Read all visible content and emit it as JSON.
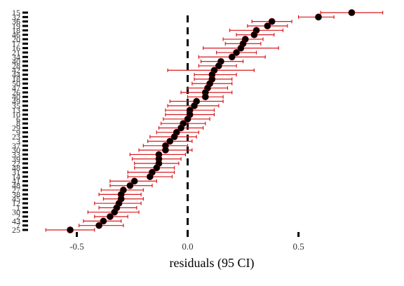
{
  "chart_data": {
    "type": "scatter",
    "xlabel": "residuals (95 CI)",
    "ylabel": "",
    "xlim": [
      -0.72,
      0.9
    ],
    "x_ticks": [
      -0.5,
      0.0,
      0.5
    ],
    "x_tick_labels": [
      "-0.5",
      "0.0",
      "0.5"
    ],
    "reference_line_x": 0,
    "grid": false,
    "colors": {
      "point": "#000000",
      "error_bar": "#d7191c",
      "reference_line": "#000000"
    },
    "series": [
      {
        "values": [
          {
            "label": "15",
            "x": 0.74,
            "lo": 0.6,
            "hi": 0.88
          },
          {
            "label": "32",
            "x": 0.59,
            "lo": 0.5,
            "hi": 0.66
          },
          {
            "label": "36",
            "x": 0.38,
            "lo": 0.29,
            "hi": 0.47
          },
          {
            "label": "19",
            "x": 0.36,
            "lo": 0.27,
            "hi": 0.45
          },
          {
            "label": "18",
            "x": 0.31,
            "lo": 0.19,
            "hi": 0.43
          },
          {
            "label": "46",
            "x": 0.3,
            "lo": 0.22,
            "hi": 0.39
          },
          {
            "label": "20",
            "x": 0.26,
            "lo": 0.16,
            "hi": 0.34
          },
          {
            "label": "17",
            "x": 0.25,
            "lo": 0.17,
            "hi": 0.33
          },
          {
            "label": "16",
            "x": 0.24,
            "lo": 0.07,
            "hi": 0.41
          },
          {
            "label": "21",
            "x": 0.22,
            "lo": 0.13,
            "hi": 0.31
          },
          {
            "label": "34",
            "x": 0.2,
            "lo": 0.05,
            "hi": 0.35
          },
          {
            "label": "40",
            "x": 0.15,
            "lo": 0.06,
            "hi": 0.25
          },
          {
            "label": "28",
            "x": 0.14,
            "lo": 0.05,
            "hi": 0.22
          },
          {
            "label": "42",
            "x": 0.12,
            "lo": -0.09,
            "hi": 0.3
          },
          {
            "label": "44",
            "x": 0.11,
            "lo": 0.03,
            "hi": 0.22
          },
          {
            "label": "18",
            "x": 0.11,
            "lo": 0.03,
            "hi": 0.2
          },
          {
            "label": "50",
            "x": 0.1,
            "lo": 0.02,
            "hi": 0.2
          },
          {
            "label": "47",
            "x": 0.09,
            "lo": 0.0,
            "hi": 0.18
          },
          {
            "label": "26",
            "x": 0.08,
            "lo": -0.03,
            "hi": 0.2
          },
          {
            "label": "40",
            "x": 0.08,
            "lo": 0.0,
            "hi": 0.16
          },
          {
            "label": "49",
            "x": 0.04,
            "lo": -0.08,
            "hi": 0.16
          },
          {
            "label": "35",
            "x": 0.03,
            "lo": -0.09,
            "hi": 0.14
          },
          {
            "label": "13",
            "x": 0.01,
            "lo": -0.1,
            "hi": 0.12
          },
          {
            "label": "10",
            "x": 0.01,
            "lo": -0.1,
            "hi": 0.12
          },
          {
            "label": "6",
            "x": 0.0,
            "lo": -0.11,
            "hi": 0.1
          },
          {
            "label": "8",
            "x": -0.02,
            "lo": -0.12,
            "hi": 0.08
          },
          {
            "label": "29",
            "x": -0.03,
            "lo": -0.13,
            "hi": 0.07
          },
          {
            "label": "9",
            "x": -0.05,
            "lo": -0.14,
            "hi": 0.05
          },
          {
            "label": "23",
            "x": -0.06,
            "lo": -0.17,
            "hi": 0.04
          },
          {
            "label": "3",
            "x": -0.08,
            "lo": -0.18,
            "hi": 0.02
          },
          {
            "label": "37",
            "x": -0.1,
            "lo": -0.2,
            "hi": 0.0
          },
          {
            "label": "30",
            "x": -0.1,
            "lo": -0.22,
            "hi": 0.02
          },
          {
            "label": "33",
            "x": -0.13,
            "lo": -0.26,
            "hi": -0.01
          },
          {
            "label": "39",
            "x": -0.13,
            "lo": -0.25,
            "hi": -0.03
          },
          {
            "label": "22",
            "x": -0.13,
            "lo": -0.24,
            "hi": -0.04
          },
          {
            "label": "48",
            "x": -0.14,
            "lo": -0.24,
            "hi": -0.06
          },
          {
            "label": "31",
            "x": -0.16,
            "lo": -0.27,
            "hi": -0.06
          },
          {
            "label": "14",
            "x": -0.17,
            "lo": -0.27,
            "hi": -0.07
          },
          {
            "label": "41",
            "x": -0.24,
            "lo": -0.35,
            "hi": -0.14
          },
          {
            "label": "48",
            "x": -0.26,
            "lo": -0.35,
            "hi": -0.16
          },
          {
            "label": "27",
            "x": -0.29,
            "lo": -0.39,
            "hi": -0.2
          },
          {
            "label": "38",
            "x": -0.3,
            "lo": -0.4,
            "hi": -0.21
          },
          {
            "label": "45",
            "x": -0.3,
            "lo": -0.38,
            "hi": -0.2
          },
          {
            "label": "12",
            "x": -0.31,
            "lo": -0.42,
            "hi": -0.21
          },
          {
            "label": "1",
            "x": -0.32,
            "lo": -0.4,
            "hi": -0.23
          },
          {
            "label": "30",
            "x": -0.33,
            "lo": -0.45,
            "hi": -0.22
          },
          {
            "label": "2",
            "x": -0.35,
            "lo": -0.42,
            "hi": -0.27
          },
          {
            "label": "43",
            "x": -0.38,
            "lo": -0.47,
            "hi": -0.3
          },
          {
            "label": "7",
            "x": -0.4,
            "lo": -0.49,
            "hi": -0.29
          },
          {
            "label": "25",
            "x": -0.53,
            "lo": -0.64,
            "hi": -0.42
          }
        ]
      }
    ]
  }
}
